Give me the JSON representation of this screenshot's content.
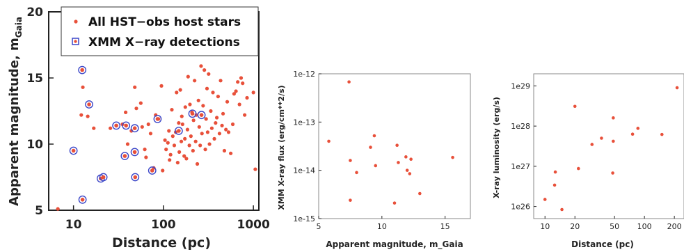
{
  "chart_data": [
    {
      "type": "scatter",
      "xlabel": "Distance (pc)",
      "ylabel": "Apparent magnitude, m",
      "ylabel_sub": "Gaia",
      "xscale": "log",
      "xlim": [
        5.3,
        1150
      ],
      "ylim": [
        5,
        20
      ],
      "xticks": [
        {
          "v": 10,
          "label": "10"
        },
        {
          "v": 100,
          "label": "100"
        },
        {
          "v": 1000,
          "label": "1000"
        }
      ],
      "yticks": [
        {
          "v": 5,
          "label": "5"
        },
        {
          "v": 10,
          "label": "10"
        },
        {
          "v": 15,
          "label": "15"
        },
        {
          "v": 20,
          "label": "20"
        }
      ],
      "legend": {
        "position": "top-left",
        "entries": [
          {
            "label": "All HST−obs host stars",
            "marker": "dot"
          },
          {
            "label": "XMM X−ray detections",
            "marker": "square"
          }
        ]
      },
      "series": [
        {
          "name": "All HST−obs host stars",
          "color": "#e8503a",
          "points": [
            [
              6.7,
              5.1
            ],
            [
              12.2,
              12.2
            ],
            [
              12.7,
              14.3
            ],
            [
              14.4,
              12.1
            ],
            [
              16.8,
              11.2
            ],
            [
              25.7,
              11.2
            ],
            [
              35,
              11.5
            ],
            [
              38,
              12.4
            ],
            [
              40,
              10.0
            ],
            [
              44,
              11.0
            ],
            [
              48,
              14.3
            ],
            [
              50,
              12.7
            ],
            [
              56,
              13.1
            ],
            [
              58,
              11.3
            ],
            [
              62,
              9.6
            ],
            [
              64,
              9.0
            ],
            [
              68,
              11.5
            ],
            [
              72,
              10.8
            ],
            [
              78,
              8.2
            ],
            [
              82,
              12.2
            ],
            [
              88,
              11.9
            ],
            [
              95,
              14.4
            ],
            [
              98,
              8.0
            ],
            [
              104,
              10.3
            ],
            [
              107,
              9.6
            ],
            [
              112,
              10.1
            ],
            [
              115,
              11.0
            ],
            [
              117,
              8.8
            ],
            [
              120,
              9.2
            ],
            [
              124,
              12.6
            ],
            [
              127,
              10.6
            ],
            [
              132,
              9.9
            ],
            [
              137,
              10.9
            ],
            [
              140,
              13.9
            ],
            [
              144,
              8.6
            ],
            [
              148,
              11.6
            ],
            [
              150,
              9.4
            ],
            [
              154,
              14.1
            ],
            [
              158,
              10.2
            ],
            [
              160,
              12.1
            ],
            [
              163,
              11.5
            ],
            [
              170,
              9.1
            ],
            [
              173,
              10.4
            ],
            [
              175,
              12.8
            ],
            [
              180,
              8.9
            ],
            [
              185,
              11.1
            ],
            [
              188,
              15.1
            ],
            [
              194,
              9.9
            ],
            [
              197,
              13.0
            ],
            [
              202,
              10.6
            ],
            [
              208,
              12.4
            ],
            [
              213,
              9.5
            ],
            [
              216,
              11.8
            ],
            [
              222,
              14.8
            ],
            [
              228,
              10.2
            ],
            [
              232,
              12.2
            ],
            [
              238,
              8.5
            ],
            [
              245,
              13.3
            ],
            [
              250,
              11.3
            ],
            [
              256,
              9.9
            ],
            [
              262,
              15.9
            ],
            [
              268,
              10.8
            ],
            [
              276,
              12.9
            ],
            [
              285,
              15.6
            ],
            [
              292,
              9.6
            ],
            [
              298,
              11.9
            ],
            [
              305,
              14.2
            ],
            [
              310,
              10.9
            ],
            [
              318,
              15.3
            ],
            [
              325,
              10.0
            ],
            [
              336,
              12.5
            ],
            [
              345,
              11.2
            ],
            [
              355,
              13.9
            ],
            [
              368,
              10.4
            ],
            [
              380,
              11.6
            ],
            [
              392,
              12.0
            ],
            [
              405,
              13.6
            ],
            [
              420,
              10.8
            ],
            [
              432,
              14.8
            ],
            [
              448,
              11.4
            ],
            [
              460,
              12.3
            ],
            [
              476,
              9.5
            ],
            [
              495,
              11.1
            ],
            [
              512,
              13.2
            ],
            [
              530,
              10.9
            ],
            [
              560,
              9.3
            ],
            [
              590,
              11.5
            ],
            [
              610,
              13.8
            ],
            [
              640,
              14.0
            ],
            [
              670,
              14.7
            ],
            [
              700,
              13.0
            ],
            [
              730,
              15.0
            ],
            [
              760,
              14.6
            ],
            [
              800,
              12.2
            ],
            [
              850,
              13.5
            ],
            [
              1000,
              13.9
            ],
            [
              1050,
              8.1
            ]
          ]
        },
        {
          "name": "XMM X−ray detections",
          "color": "#3b46c8",
          "points": [
            [
              10.0,
              9.5
            ],
            [
              12.5,
              15.6
            ],
            [
              12.6,
              5.8
            ],
            [
              14.9,
              13.0
            ],
            [
              20.1,
              7.4
            ],
            [
              21.5,
              7.5
            ],
            [
              29.9,
              11.4
            ],
            [
              37.2,
              9.1
            ],
            [
              38.4,
              11.4
            ],
            [
              47.9,
              9.4
            ],
            [
              48.0,
              11.2
            ],
            [
              48.5,
              7.5
            ],
            [
              75.0,
              8.0
            ],
            [
              86.0,
              11.9
            ],
            [
              148,
              11.0
            ],
            [
              210,
              12.3
            ],
            [
              265,
              12.2
            ]
          ]
        }
      ]
    },
    {
      "type": "scatter",
      "xlabel": "Apparent magnitude, m_Gaia",
      "ylabel": "XMM X-ray flux (erg/cm**2/s)",
      "yscale": "log",
      "xlim": [
        5,
        17
      ],
      "ylim": [
        1e-15,
        1e-12
      ],
      "xticks": [
        {
          "v": 5,
          "label": "5"
        },
        {
          "v": 10,
          "label": "10"
        },
        {
          "v": 15,
          "label": "15"
        }
      ],
      "yticks": [
        {
          "v": 1e-15,
          "label": "1e-15"
        },
        {
          "v": 1e-14,
          "label": "1e-14"
        },
        {
          "v": 1e-13,
          "label": "1e-13"
        },
        {
          "v": 1e-12,
          "label": "1e-12"
        }
      ],
      "series": [
        {
          "color": "#e8503a",
          "points": [
            [
              5.8,
              4e-14
            ],
            [
              7.4,
              6.8e-13
            ],
            [
              7.5,
              1.6e-14
            ],
            [
              7.5,
              2.4e-15
            ],
            [
              8.0,
              9e-15
            ],
            [
              9.1,
              3e-14
            ],
            [
              9.4,
              5.2e-14
            ],
            [
              9.5,
              1.25e-14
            ],
            [
              11.0,
              2.1e-15
            ],
            [
              11.2,
              3.3e-14
            ],
            [
              11.3,
              1.45e-14
            ],
            [
              11.9,
              1.9e-14
            ],
            [
              12.0,
              1e-14
            ],
            [
              12.2,
              8.5e-15
            ],
            [
              12.3,
              1.7e-14
            ],
            [
              13.0,
              3.3e-15
            ],
            [
              15.6,
              1.85e-14
            ]
          ]
        }
      ]
    },
    {
      "type": "scatter",
      "xlabel": "Distance (pc)",
      "ylabel": "X-ray luminosity (erg/s)",
      "xscale": "log",
      "yscale": "log",
      "xlim": [
        7.7,
        250
      ],
      "ylim": [
        5e+25,
        2e+29
      ],
      "xticks": [
        {
          "v": 10,
          "label": "10"
        },
        {
          "v": 20,
          "label": "20"
        },
        {
          "v": 50,
          "label": "50"
        },
        {
          "v": 100,
          "label": "100"
        },
        {
          "v": 200,
          "label": "200"
        }
      ],
      "yticks": [
        {
          "v": 1e+26,
          "label": "1e26"
        },
        {
          "v": 1e+27,
          "label": "1e27"
        },
        {
          "v": 1e+28,
          "label": "1e28"
        },
        {
          "v": 1e+29,
          "label": "1e29"
        }
      ],
      "series": [
        {
          "color": "#e8503a",
          "points": [
            [
              10.0,
              1.5e+26
            ],
            [
              12.5,
              3.4e+26
            ],
            [
              12.7,
              7.2e+26
            ],
            [
              14.8,
              8.4e+25
            ],
            [
              20.0,
              3.1e+28
            ],
            [
              21.7,
              8.8e+26
            ],
            [
              29.7,
              3.5e+27
            ],
            [
              37.0,
              5e+27
            ],
            [
              48.0,
              6.8e+26
            ],
            [
              48.6,
              4.2e+27
            ],
            [
              48.6,
              1.6e+28
            ],
            [
              76.0,
              6.3e+27
            ],
            [
              86.0,
              8.8e+27
            ],
            [
              150.0,
              6.2e+27
            ],
            [
              213.0,
              9e+28
            ]
          ]
        }
      ]
    }
  ]
}
